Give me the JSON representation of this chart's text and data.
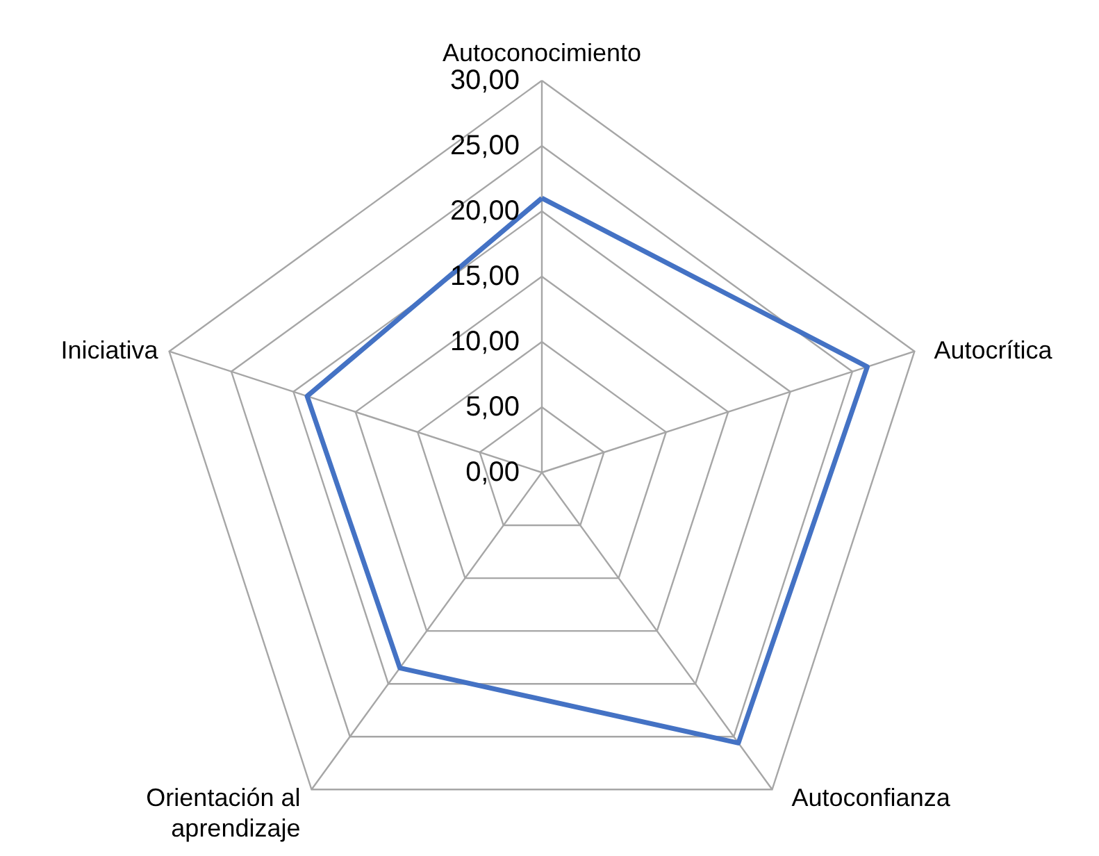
{
  "chart_data": {
    "type": "radar",
    "categories": [
      "Autoconocimiento",
      "Autocrítica",
      "Autoconfianza",
      "Orientación al aprendizaje",
      "Iniciativa"
    ],
    "series": [
      {
        "color": "#4472c4",
        "values": [
          21,
          26.2,
          25.6,
          18.5,
          18.9
        ]
      }
    ],
    "ylim": [
      0,
      30
    ],
    "yticks": [
      {
        "value": 0,
        "label": "0,00"
      },
      {
        "value": 5,
        "label": "5,00"
      },
      {
        "value": 10,
        "label": "10,00"
      },
      {
        "value": 15,
        "label": "15,00"
      },
      {
        "value": 20,
        "label": "20,00"
      },
      {
        "value": 25,
        "label": "25,00"
      },
      {
        "value": 30,
        "label": "30,00"
      }
    ],
    "grid": true,
    "marker": "none",
    "line_style": "solid"
  }
}
